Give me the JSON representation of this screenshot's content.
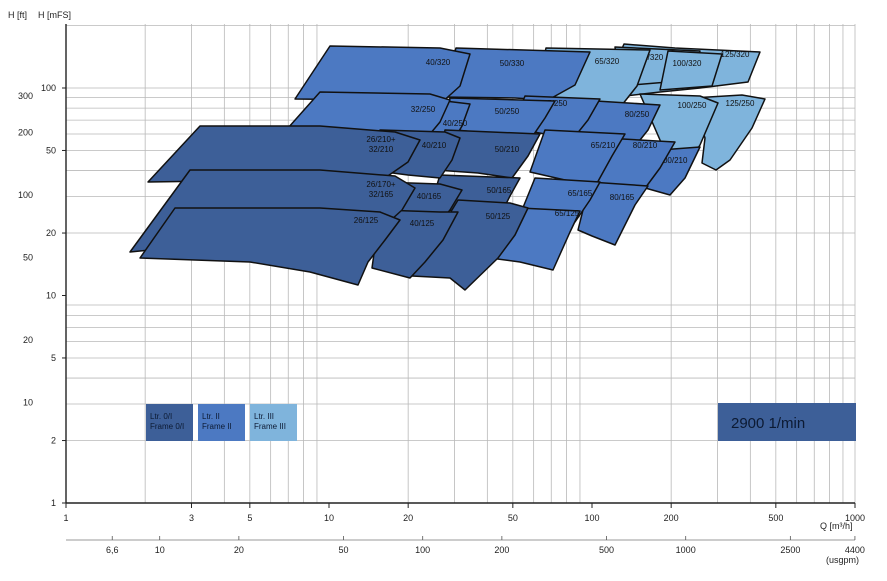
{
  "chart_data": {
    "type": "area",
    "title": "",
    "xlabel": "Q [m³/h]",
    "x2label": "(usgpm)",
    "ylabel_left": "H [ft]",
    "ylabel_right": "H [mFS]",
    "xscale": "log",
    "xlim": [
      1,
      1000
    ],
    "ylim_m": [
      1,
      100
    ],
    "grid": true,
    "x_ticks": [
      "1",
      "3",
      "5",
      "10",
      "20",
      "50",
      "100",
      "200",
      "500",
      "1000"
    ],
    "x2_ticks": [
      "6,6",
      "10",
      "20",
      "50",
      "100",
      "200",
      "500",
      "1000",
      "2500",
      "4400"
    ],
    "y_m_ticks": [
      "1",
      "2",
      "5",
      "10",
      "20",
      "50",
      "100"
    ],
    "y_ft_ticks": [
      "10",
      "20",
      "50",
      "100",
      "200",
      "300"
    ],
    "speed": "2900 1/min",
    "legend": [
      {
        "line1": "Ltr. 0/I",
        "line2": "Frame 0/I",
        "color": "#3d5f98"
      },
      {
        "line1": "Ltr. II",
        "line2": "Frame II",
        "color": "#4c79c2"
      },
      {
        "line1": "Ltr. III",
        "line2": "Frame III",
        "color": "#7fb4dc"
      }
    ],
    "regions": [
      {
        "label": "125/320",
        "frame": "III"
      },
      {
        "label": "80/320",
        "frame": "III"
      },
      {
        "label": "100/320",
        "frame": "III"
      },
      {
        "label": "125/250",
        "frame": "III"
      },
      {
        "label": "100/250",
        "frame": "III"
      },
      {
        "label": "100/210",
        "frame": "II"
      },
      {
        "label": "65/320",
        "frame": "III"
      },
      {
        "label": "50/330",
        "frame": "II"
      },
      {
        "label": "40/320",
        "frame": "II"
      },
      {
        "label": "80/250",
        "frame": "II"
      },
      {
        "label": "65/250",
        "frame": "II"
      },
      {
        "label": "50/250",
        "frame": "II"
      },
      {
        "label": "40/250",
        "frame": "II"
      },
      {
        "label": "32/250",
        "frame": "II"
      },
      {
        "label": "80/210",
        "frame": "II"
      },
      {
        "label": "65/210",
        "frame": "II"
      },
      {
        "label": "80/165",
        "frame": "II"
      },
      {
        "label": "65/165",
        "frame": "II"
      },
      {
        "label": "65/125",
        "frame": "II"
      },
      {
        "label": "50/210",
        "frame": "0/I"
      },
      {
        "label": "50/165",
        "frame": "0/I"
      },
      {
        "label": "50/125",
        "frame": "0/I"
      },
      {
        "label": "40/210",
        "frame": "0/I"
      },
      {
        "label": "40/165",
        "frame": "0/I"
      },
      {
        "label": "40/125",
        "frame": "0/I"
      },
      {
        "label": "26/210+\n32/210",
        "frame": "0/I"
      },
      {
        "label": "26/170+\n32/165",
        "frame": "0/I"
      },
      {
        "label": "26/125",
        "frame": "0/I"
      }
    ]
  }
}
